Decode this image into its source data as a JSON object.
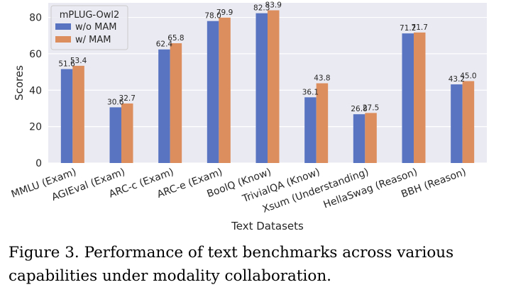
{
  "chart_data": {
    "type": "bar",
    "categories": [
      "MMLU (Exam)",
      "AGIEval (Exam)",
      "ARC-c (Exam)",
      "ARC-e (Exam)",
      "BoolQ (Know)",
      "TrivialQA (Know)",
      "Xsum (Understanding)",
      "HellaSwag (Reason)",
      "BBH (Reason)"
    ],
    "series": [
      {
        "name": "w/o MAM",
        "color": "#5975c2",
        "values": [
          51.6,
          30.6,
          62.4,
          78.0,
          82.3,
          36.1,
          26.8,
          71.2,
          43.2
        ],
        "labels": [
          "51.6",
          "30.6",
          "62.4",
          "78.0",
          "82.3",
          "36.1",
          "26.8",
          "71.2",
          "43.2"
        ]
      },
      {
        "name": "w/ MAM",
        "color": "#dd8e5e",
        "values": [
          53.4,
          32.7,
          65.8,
          79.9,
          83.9,
          43.8,
          27.5,
          71.7,
          45.0
        ],
        "labels": [
          "53.4",
          "32.7",
          "65.8",
          "79.9",
          "83.9",
          "43.8",
          "27.5",
          "71.7",
          "45.0"
        ]
      }
    ],
    "xlabel": "Text Datasets",
    "ylabel": "Scores",
    "ylim": [
      0,
      88
    ],
    "yticks": [
      0,
      20,
      40,
      60,
      80
    ],
    "grid": true,
    "background": "#eaeaf2",
    "legend": {
      "title": "mPLUG-Owl2",
      "placement": "top-left"
    }
  },
  "caption": "Figure 3. Performance of text benchmarks across various capabilities under modality collaboration."
}
